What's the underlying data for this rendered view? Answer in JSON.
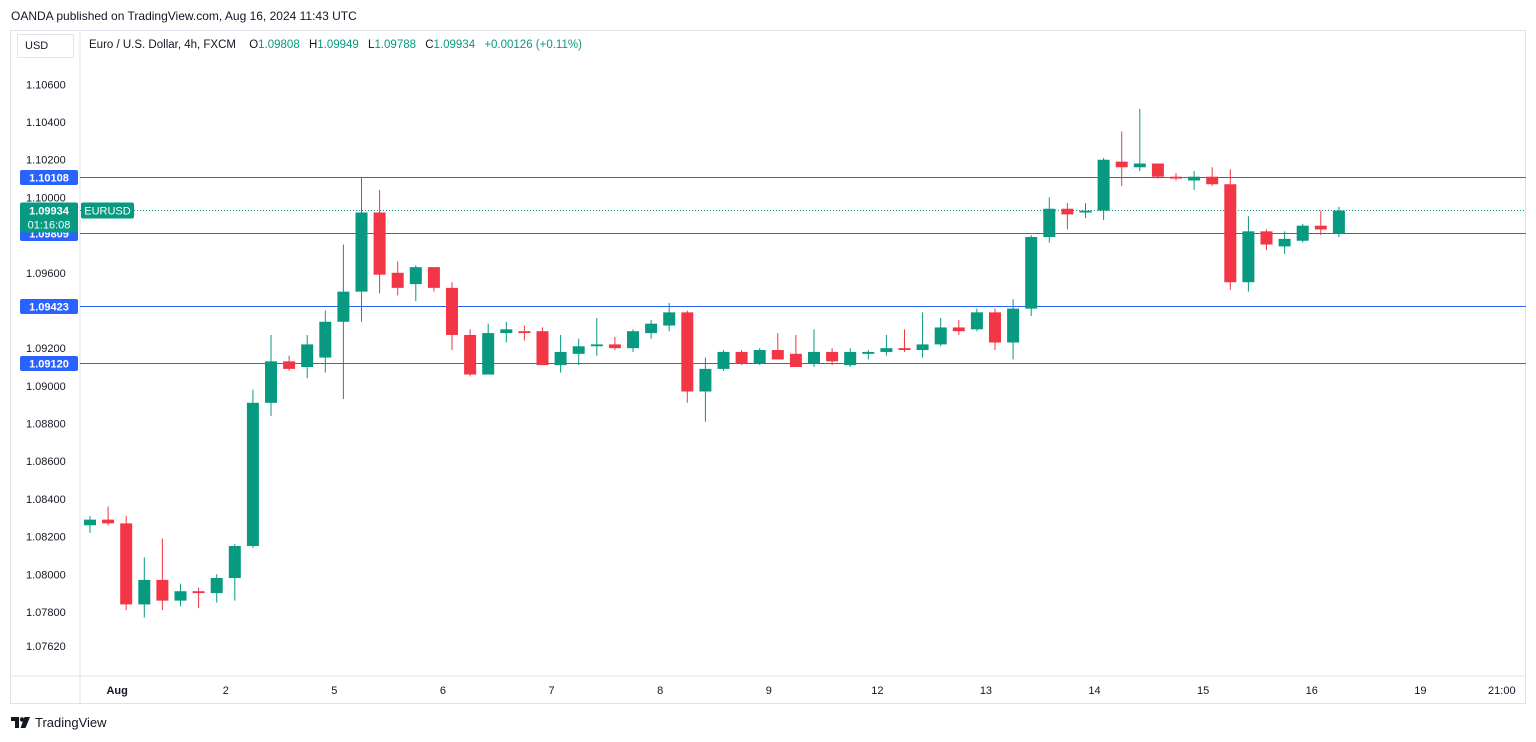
{
  "caption": "OANDA published on TradingView.com, Aug 16, 2024 11:43 UTC",
  "currency": "USD",
  "legend": {
    "title": "Euro / U.S. Dollar, 4h, FXCM",
    "open_label": "O",
    "open": "1.09808",
    "high_label": "H",
    "high": "1.09949",
    "low_label": "L",
    "low": "1.09788",
    "close_label": "C",
    "close": "1.09934",
    "change": "+0.00126 (+0.11%)"
  },
  "footer": {
    "brand": "TradingView"
  },
  "colors": {
    "up": "#089981",
    "down": "#f23645",
    "hline": "#2962ff",
    "grid_text": "#131722",
    "border": "#e0e3eb"
  },
  "chart_data": {
    "type": "candlestick",
    "symbol": "EURUSD",
    "timeframe": "4h",
    "ylim": [
      1.0746,
      1.1074
    ],
    "y_ticks": [
      "1.10600",
      "1.10400",
      "1.10200",
      "1.10000",
      "1.09600",
      "1.09200",
      "1.09000",
      "1.08800",
      "1.08600",
      "1.08400",
      "1.08200",
      "1.08000",
      "1.07800",
      "1.07620"
    ],
    "x_ticks": [
      {
        "label": "Aug",
        "bar": 1.5,
        "bold": true
      },
      {
        "label": "2",
        "bar": 7.5
      },
      {
        "label": "5",
        "bar": 13.5
      },
      {
        "label": "6",
        "bar": 19.5
      },
      {
        "label": "7",
        "bar": 25.5
      },
      {
        "label": "8",
        "bar": 31.5
      },
      {
        "label": "9",
        "bar": 37.5
      },
      {
        "label": "12",
        "bar": 43.5
      },
      {
        "label": "13",
        "bar": 49.5
      },
      {
        "label": "14",
        "bar": 55.5
      },
      {
        "label": "15",
        "bar": 61.5
      },
      {
        "label": "16",
        "bar": 67.5
      },
      {
        "label": "19",
        "bar": 73.5
      },
      {
        "label": "21:00",
        "bar": 78
      }
    ],
    "horizontal_levels": [
      {
        "value": 1.10108,
        "label": "1.10108"
      },
      {
        "value": 1.09809,
        "label": "1.09809"
      },
      {
        "value": 1.09423,
        "label": "1.09423"
      },
      {
        "value": 1.0912,
        "label": "1.09120"
      }
    ],
    "last_price": {
      "value": 1.09934,
      "label": "1.09934",
      "countdown": "01:16:08",
      "tag": "EURUSD"
    },
    "candles": [
      {
        "o": 1.0826,
        "h": 1.0831,
        "l": 1.0822,
        "c": 1.0829
      },
      {
        "o": 1.0829,
        "h": 1.0836,
        "l": 1.0826,
        "c": 1.0827
      },
      {
        "o": 1.0827,
        "h": 1.0831,
        "l": 1.0781,
        "c": 1.0784
      },
      {
        "o": 1.0784,
        "h": 1.0809,
        "l": 1.0777,
        "c": 1.0797
      },
      {
        "o": 1.0797,
        "h": 1.0819,
        "l": 1.0781,
        "c": 1.0786
      },
      {
        "o": 1.0786,
        "h": 1.0795,
        "l": 1.0783,
        "c": 1.0791
      },
      {
        "o": 1.0791,
        "h": 1.0793,
        "l": 1.0782,
        "c": 1.079
      },
      {
        "o": 1.079,
        "h": 1.08,
        "l": 1.0785,
        "c": 1.0798
      },
      {
        "o": 1.0798,
        "h": 1.0816,
        "l": 1.0786,
        "c": 1.0815
      },
      {
        "o": 1.0815,
        "h": 1.0898,
        "l": 1.0814,
        "c": 1.0891
      },
      {
        "o": 1.0891,
        "h": 1.0927,
        "l": 1.0884,
        "c": 1.0913
      },
      {
        "o": 1.0913,
        "h": 1.0916,
        "l": 1.0908,
        "c": 1.0909
      },
      {
        "o": 1.091,
        "h": 1.0927,
        "l": 1.0904,
        "c": 1.0922
      },
      {
        "o": 1.0915,
        "h": 1.094,
        "l": 1.0907,
        "c": 1.0934
      },
      {
        "o": 1.0934,
        "h": 1.0975,
        "l": 1.0893,
        "c": 1.095
      },
      {
        "o": 1.095,
        "h": 1.1011,
        "l": 1.0934,
        "c": 1.0992
      },
      {
        "o": 1.0992,
        "h": 1.1004,
        "l": 1.0949,
        "c": 1.0959
      },
      {
        "o": 1.096,
        "h": 1.0966,
        "l": 1.0948,
        "c": 1.0952
      },
      {
        "o": 1.0954,
        "h": 1.0964,
        "l": 1.0945,
        "c": 1.0963
      },
      {
        "o": 1.0963,
        "h": 1.0963,
        "l": 1.095,
        "c": 1.0952
      },
      {
        "o": 1.0952,
        "h": 1.0955,
        "l": 1.0919,
        "c": 1.0927
      },
      {
        "o": 1.0927,
        "h": 1.093,
        "l": 1.0905,
        "c": 1.0906
      },
      {
        "o": 1.0906,
        "h": 1.0933,
        "l": 1.0906,
        "c": 1.0928
      },
      {
        "o": 1.0928,
        "h": 1.0934,
        "l": 1.0923,
        "c": 1.093
      },
      {
        "o": 1.0929,
        "h": 1.0932,
        "l": 1.0924,
        "c": 1.0928
      },
      {
        "o": 1.0929,
        "h": 1.0931,
        "l": 1.0911,
        "c": 1.0911
      },
      {
        "o": 1.0911,
        "h": 1.0927,
        "l": 1.0907,
        "c": 1.0918
      },
      {
        "o": 1.0917,
        "h": 1.0925,
        "l": 1.0911,
        "c": 1.0921
      },
      {
        "o": 1.0921,
        "h": 1.0936,
        "l": 1.0916,
        "c": 1.0922
      },
      {
        "o": 1.0922,
        "h": 1.0926,
        "l": 1.0919,
        "c": 1.092
      },
      {
        "o": 1.092,
        "h": 1.093,
        "l": 1.0918,
        "c": 1.0929
      },
      {
        "o": 1.0928,
        "h": 1.0935,
        "l": 1.0925,
        "c": 1.0933
      },
      {
        "o": 1.0932,
        "h": 1.0944,
        "l": 1.0929,
        "c": 1.0939
      },
      {
        "o": 1.0939,
        "h": 1.094,
        "l": 1.0891,
        "c": 1.0897
      },
      {
        "o": 1.0897,
        "h": 1.0915,
        "l": 1.0881,
        "c": 1.0909
      },
      {
        "o": 1.0909,
        "h": 1.0919,
        "l": 1.0908,
        "c": 1.0918
      },
      {
        "o": 1.0918,
        "h": 1.0919,
        "l": 1.0911,
        "c": 1.0912
      },
      {
        "o": 1.0912,
        "h": 1.092,
        "l": 1.0911,
        "c": 1.0919
      },
      {
        "o": 1.0919,
        "h": 1.0928,
        "l": 1.0914,
        "c": 1.0914
      },
      {
        "o": 1.0917,
        "h": 1.0927,
        "l": 1.091,
        "c": 1.091
      },
      {
        "o": 1.0912,
        "h": 1.093,
        "l": 1.091,
        "c": 1.0918
      },
      {
        "o": 1.0918,
        "h": 1.092,
        "l": 1.0911,
        "c": 1.0913
      },
      {
        "o": 1.0911,
        "h": 1.092,
        "l": 1.091,
        "c": 1.0918
      },
      {
        "o": 1.0917,
        "h": 1.0919,
        "l": 1.0914,
        "c": 1.0918
      },
      {
        "o": 1.0918,
        "h": 1.0927,
        "l": 1.0916,
        "c": 1.092
      },
      {
        "o": 1.092,
        "h": 1.093,
        "l": 1.0918,
        "c": 1.0919
      },
      {
        "o": 1.0919,
        "h": 1.0939,
        "l": 1.0915,
        "c": 1.0922
      },
      {
        "o": 1.0922,
        "h": 1.0936,
        "l": 1.0921,
        "c": 1.0931
      },
      {
        "o": 1.0931,
        "h": 1.0935,
        "l": 1.0927,
        "c": 1.0929
      },
      {
        "o": 1.093,
        "h": 1.0941,
        "l": 1.0929,
        "c": 1.0939
      },
      {
        "o": 1.0939,
        "h": 1.0941,
        "l": 1.0919,
        "c": 1.0923
      },
      {
        "o": 1.0923,
        "h": 1.0946,
        "l": 1.0914,
        "c": 1.0941
      },
      {
        "o": 1.0941,
        "h": 1.098,
        "l": 1.0937,
        "c": 1.0979
      },
      {
        "o": 1.0979,
        "h": 1.1,
        "l": 1.0976,
        "c": 1.0994
      },
      {
        "o": 1.0994,
        "h": 1.0997,
        "l": 1.0983,
        "c": 1.0991
      },
      {
        "o": 1.0992,
        "h": 1.0997,
        "l": 1.0989,
        "c": 1.0993
      },
      {
        "o": 1.0993,
        "h": 1.1021,
        "l": 1.0988,
        "c": 1.102
      },
      {
        "o": 1.1019,
        "h": 1.1035,
        "l": 1.1006,
        "c": 1.1016
      },
      {
        "o": 1.1016,
        "h": 1.1047,
        "l": 1.1014,
        "c": 1.1018
      },
      {
        "o": 1.1018,
        "h": 1.1018,
        "l": 1.101,
        "c": 1.1011
      },
      {
        "o": 1.1011,
        "h": 1.1013,
        "l": 1.1009,
        "c": 1.101
      },
      {
        "o": 1.1009,
        "h": 1.1014,
        "l": 1.1004,
        "c": 1.1011
      },
      {
        "o": 1.1011,
        "h": 1.1016,
        "l": 1.1006,
        "c": 1.1007
      },
      {
        "o": 1.1007,
        "h": 1.1015,
        "l": 1.0951,
        "c": 1.0955
      },
      {
        "o": 1.0955,
        "h": 1.099,
        "l": 1.095,
        "c": 1.0982
      },
      {
        "o": 1.0982,
        "h": 1.0983,
        "l": 1.0972,
        "c": 1.0975
      },
      {
        "o": 1.0974,
        "h": 1.0982,
        "l": 1.097,
        "c": 1.0978
      },
      {
        "o": 1.0977,
        "h": 1.0986,
        "l": 1.0976,
        "c": 1.0985
      },
      {
        "o": 1.0985,
        "h": 1.0993,
        "l": 1.098,
        "c": 1.0983
      },
      {
        "o": 1.0981,
        "h": 1.0995,
        "l": 1.0979,
        "c": 1.0993
      }
    ]
  }
}
